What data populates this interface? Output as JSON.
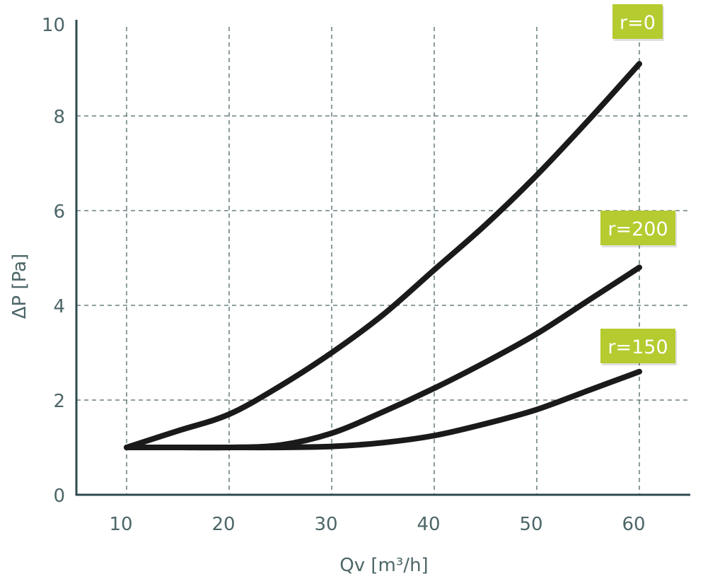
{
  "chart_data": {
    "type": "line",
    "title": "",
    "xlabel": "Qv [m³/h]",
    "ylabel": "ΔP [Pa]",
    "xlim": [
      5,
      65
    ],
    "ylim": [
      0,
      10
    ],
    "xticks": [
      10,
      20,
      30,
      40,
      50,
      60
    ],
    "yticks": [
      0,
      2,
      4,
      6,
      8,
      10
    ],
    "xtick_labels": [
      "10",
      "20",
      "30",
      "40",
      "50",
      "60"
    ],
    "ytick_labels": [
      "0",
      "2",
      "4",
      "6",
      "8",
      "10"
    ],
    "grid": true,
    "series": [
      {
        "name": "r=0",
        "x": [
          10,
          15,
          20,
          25,
          30,
          35,
          40,
          45,
          50,
          55,
          60
        ],
        "values": [
          1,
          1.35,
          1.7,
          2.3,
          3.0,
          3.8,
          4.75,
          5.7,
          6.75,
          7.9,
          9.1
        ]
      },
      {
        "name": "r=200",
        "x": [
          10,
          15,
          20,
          25,
          30,
          35,
          40,
          45,
          50,
          55,
          60
        ],
        "values": [
          1,
          1,
          1,
          1.05,
          1.3,
          1.75,
          2.25,
          2.8,
          3.4,
          4.1,
          4.8
        ]
      },
      {
        "name": "r=150",
        "x": [
          10,
          15,
          20,
          25,
          30,
          35,
          40,
          45,
          50,
          55,
          60
        ],
        "values": [
          1,
          1,
          1,
          1,
          1.02,
          1.1,
          1.25,
          1.5,
          1.8,
          2.2,
          2.6
        ]
      }
    ],
    "colors": {
      "line": "#1a1a1a",
      "label_bg": "#b5cb2f",
      "axis": "#2e4a4c",
      "grid": "#4d6668"
    }
  }
}
